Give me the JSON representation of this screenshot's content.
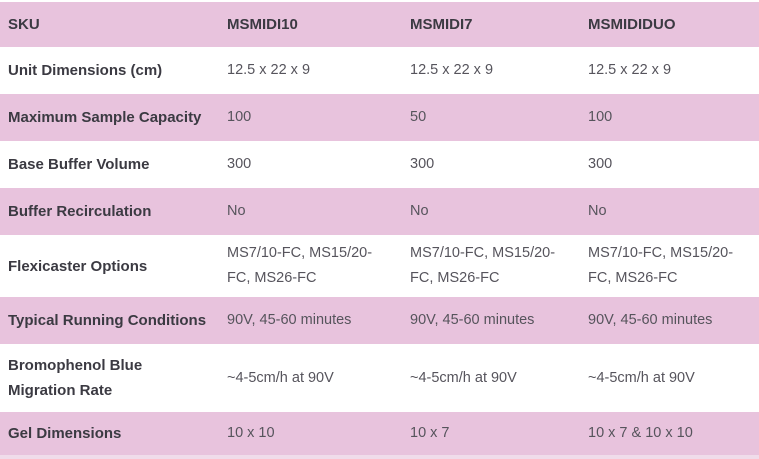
{
  "table": {
    "columns": [
      "SKU",
      "MSMIDI10",
      "MSMIDI7",
      "MSMIDIDUO"
    ],
    "rows": [
      {
        "label": "Unit Dimensions (cm)",
        "values": [
          "12.5 x 22 x 9",
          "12.5 x 22 x 9",
          "12.5 x 22 x 9"
        ]
      },
      {
        "label": "Maximum Sample Capacity",
        "values": [
          "100",
          "50",
          "100"
        ]
      },
      {
        "label": "Base Buffer Volume",
        "values": [
          "300",
          "300",
          "300"
        ]
      },
      {
        "label": "Buffer Recirculation",
        "values": [
          "No",
          "No",
          "No"
        ]
      },
      {
        "label": "Flexicaster Options",
        "values": [
          "MS7/10-FC, MS15/20-FC, MS26-FC",
          "MS7/10-FC, MS15/20-FC, MS26-FC",
          "MS7/10-FC, MS15/20-FC, MS26-FC"
        ]
      },
      {
        "label": "Typical Running Conditions",
        "values": [
          "90V, 45-60 minutes",
          "90V, 45-60 minutes",
          "90V, 45-60 minutes"
        ]
      },
      {
        "label": "Bromophenol Blue Migration Rate",
        "values": [
          "~4-5cm/h at 90V",
          "~4-5cm/h at 90V",
          "~4-5cm/h at 90V"
        ]
      },
      {
        "label": "Gel Dimensions",
        "values": [
          "10 x 10",
          "10 x 7",
          "10 x 7 & 10 x 10"
        ]
      }
    ]
  },
  "colors": {
    "row_pink": "#e8c3dd",
    "label_text": "#3b3a42",
    "value_text": "#56545c",
    "background": "#ffffff",
    "bottom_strip": "#f0dcea"
  }
}
